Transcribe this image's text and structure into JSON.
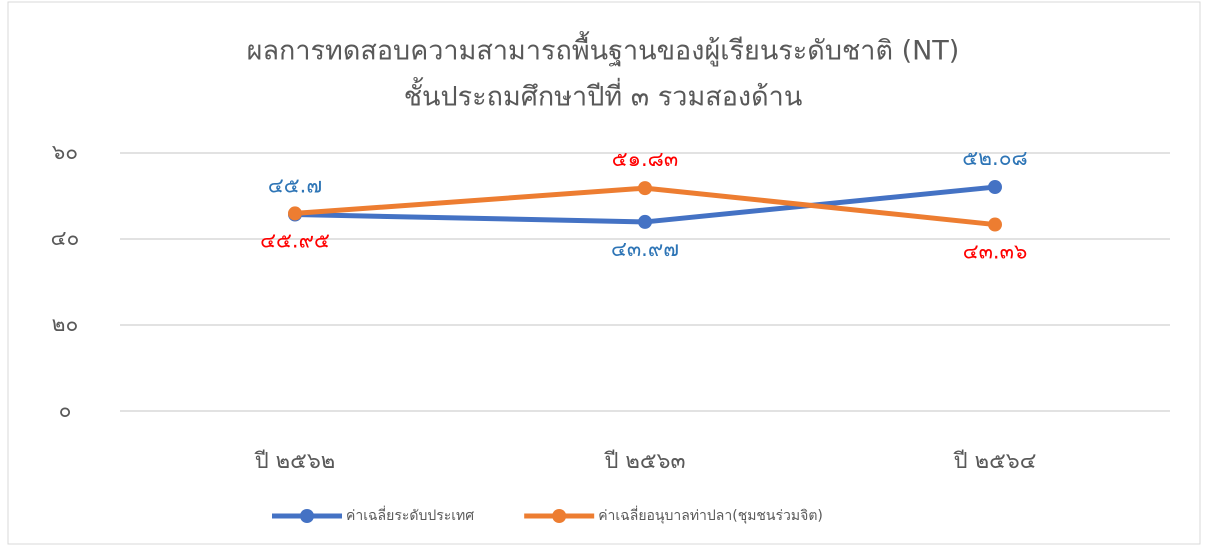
{
  "chart_data": {
    "type": "line",
    "title": [
      "ผลการทดสอบความสามารถพื้นฐานของผู้เรียนระดับชาติ (NT)",
      "ชั้นประถมศึกษาปีที่  ๓ รวมสองด้าน"
    ],
    "categories": [
      "ปี  ๒๕๖๒",
      "ปี  ๒๕๖๓",
      "ปี  ๒๕๖๔"
    ],
    "series": [
      {
        "name": "ค่าเฉลี่ยระดับประเทศ",
        "color": "#4472c4",
        "label_color": "#2e75b6",
        "values": [
          45.7,
          43.97,
          52.08
        ],
        "value_labels": [
          "๔๕.๗",
          "๔๓.๙๗",
          "๕๒.๐๘"
        ]
      },
      {
        "name": "ค่าเฉลี่ยอนุบาลท่าปลา(ชุมชนร่วมจิต)",
        "color": "#ed7d31",
        "label_color": "#ff0000",
        "values": [
          45.95,
          51.83,
          43.36
        ],
        "value_labels": [
          "๔๕.๙๕",
          "๕๑.๘๓",
          "๔๓.๓๖"
        ]
      }
    ],
    "ylim": [
      0,
      60
    ],
    "yticks": [
      {
        "value": 0,
        "label": "๐"
      },
      {
        "value": 20,
        "label": "๒๐"
      },
      {
        "value": 40,
        "label": "๔๐"
      },
      {
        "value": 60,
        "label": "๖๐"
      }
    ],
    "grid": true,
    "legend": "bottom"
  }
}
